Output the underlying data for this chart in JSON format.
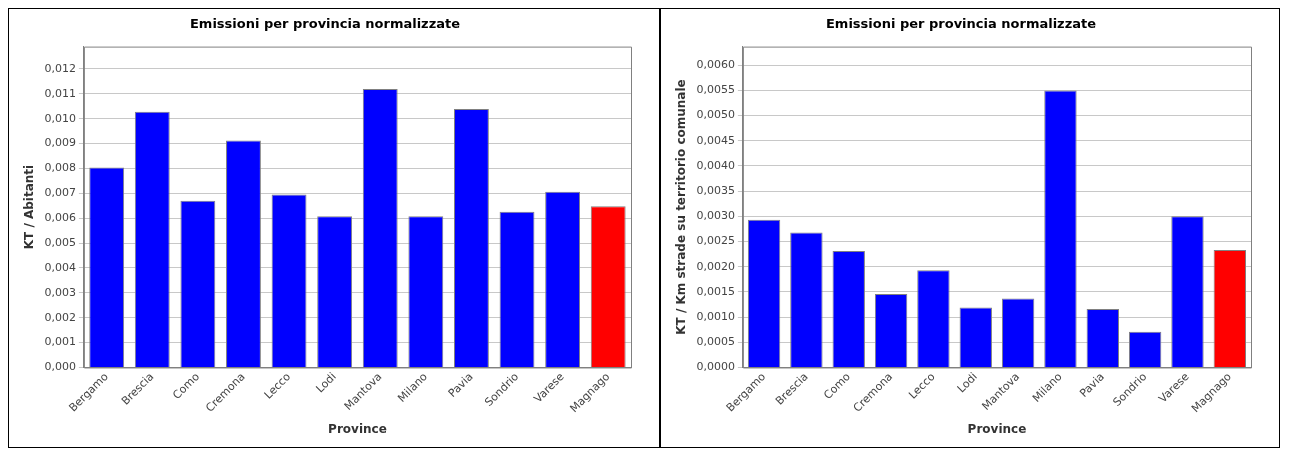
{
  "chart_data": [
    {
      "type": "bar",
      "title": "Emissioni per provincia normalizzate",
      "xlabel": "Province",
      "ylabel": "KT / Abitanti",
      "categories": [
        "Bergamo",
        "Brescia",
        "Como",
        "Cremona",
        "Lecco",
        "Lodi",
        "Mantova",
        "Milano",
        "Pavia",
        "Sondrio",
        "Varese",
        "Magnago"
      ],
      "values": [
        0.00804,
        0.01028,
        0.0067,
        0.00912,
        0.00695,
        0.00608,
        0.0112,
        0.00608,
        0.01039,
        0.00626,
        0.00706,
        0.00648
      ],
      "colors": [
        "#0000ff",
        "#0000ff",
        "#0000ff",
        "#0000ff",
        "#0000ff",
        "#0000ff",
        "#0000ff",
        "#0000ff",
        "#0000ff",
        "#0000ff",
        "#0000ff",
        "#ff0000"
      ],
      "ylim": [
        0,
        0.0129
      ],
      "yticks": [
        {
          "value": 0,
          "label": "0,000"
        },
        {
          "value": 0.001,
          "label": "0,001"
        },
        {
          "value": 0.002,
          "label": "0,002"
        },
        {
          "value": 0.003,
          "label": "0,003"
        },
        {
          "value": 0.004,
          "label": "0,004"
        },
        {
          "value": 0.005,
          "label": "0,005"
        },
        {
          "value": 0.006,
          "label": "0,006"
        },
        {
          "value": 0.007,
          "label": "0,007"
        },
        {
          "value": 0.008,
          "label": "0,008"
        },
        {
          "value": 0.009,
          "label": "0,009"
        },
        {
          "value": 0.01,
          "label": "0,010"
        },
        {
          "value": 0.011,
          "label": "0,011"
        },
        {
          "value": 0.012,
          "label": "0,012"
        }
      ],
      "grid": "y",
      "legend": false
    },
    {
      "type": "bar",
      "title": "Emissioni per provincia normalizzate",
      "xlabel": "Province",
      "ylabel": "KT / Km strade su territorio comunale",
      "categories": [
        "Bergamo",
        "Brescia",
        "Como",
        "Cremona",
        "Lecco",
        "Lodi",
        "Mantova",
        "Milano",
        "Pavia",
        "Sondrio",
        "Varese",
        "Magnago"
      ],
      "values": [
        0.00293,
        0.00268,
        0.00231,
        0.00146,
        0.00193,
        0.00119,
        0.00137,
        0.0055,
        0.00116,
        0.00071,
        0.003,
        0.00233
      ],
      "colors": [
        "#0000ff",
        "#0000ff",
        "#0000ff",
        "#0000ff",
        "#0000ff",
        "#0000ff",
        "#0000ff",
        "#0000ff",
        "#0000ff",
        "#0000ff",
        "#0000ff",
        "#ff0000"
      ],
      "ylim": [
        0,
        0.00637
      ],
      "yticks": [
        {
          "value": 0,
          "label": "0,0000"
        },
        {
          "value": 0.0005,
          "label": "0,0005"
        },
        {
          "value": 0.001,
          "label": "0,0010"
        },
        {
          "value": 0.0015,
          "label": "0,0015"
        },
        {
          "value": 0.002,
          "label": "0,0020"
        },
        {
          "value": 0.0025,
          "label": "0,0025"
        },
        {
          "value": 0.003,
          "label": "0,0030"
        },
        {
          "value": 0.0035,
          "label": "0,0035"
        },
        {
          "value": 0.004,
          "label": "0,0040"
        },
        {
          "value": 0.0045,
          "label": "0,0045"
        },
        {
          "value": 0.005,
          "label": "0,0050"
        },
        {
          "value": 0.0055,
          "label": "0,0055"
        },
        {
          "value": 0.006,
          "label": "0,0060"
        }
      ],
      "grid": "y",
      "legend": false
    }
  ]
}
